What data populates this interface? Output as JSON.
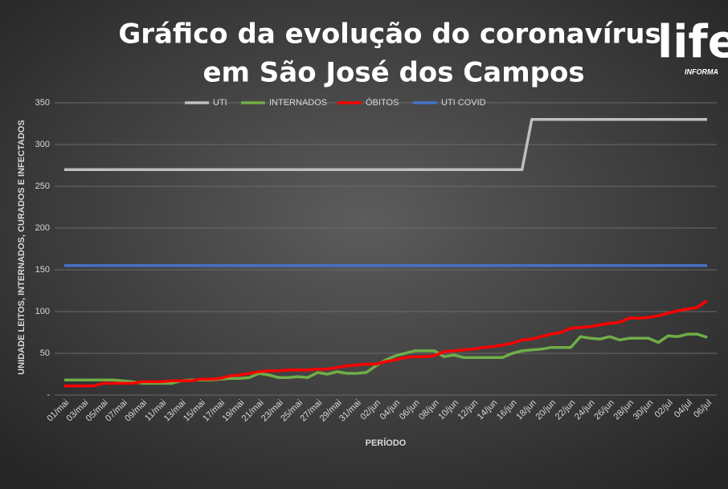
{
  "chart_data": {
    "type": "line",
    "title": [
      "Gráfico da evolução do coronavírus",
      "em São José dos Campos"
    ],
    "logo_text": "life",
    "logo_subtext": "INFORMA",
    "y_label": "UNIDADE LEITOS, INTERNADOS, CURADOS E INFECTADOS",
    "x_label": "PERÍODO",
    "categories": [
      "01/mai",
      null,
      "03/mai",
      null,
      "05/mai",
      null,
      "07/mai",
      null,
      "09/mai",
      null,
      "11/mai",
      null,
      "13/mai",
      null,
      "15/mai",
      null,
      "17/mai",
      null,
      "19/mai",
      null,
      "21/mai",
      null,
      "23/mai",
      null,
      "25/mai",
      null,
      "27/mai",
      null,
      "29/mai",
      null,
      "31/mai",
      null,
      "02/jun",
      null,
      "04/jun",
      null,
      "06/jun",
      null,
      "08/jun",
      null,
      "10/jun",
      null,
      "12/jun",
      null,
      "14/jun",
      null,
      "16/jun",
      null,
      "18/jun",
      null,
      "20/jun",
      null,
      "22/jun",
      null,
      "24/jun",
      null,
      "26/jun",
      null,
      "28/jun",
      null,
      "30/jun",
      null,
      "02/jul",
      null,
      "04/jul",
      null,
      "06/jul"
    ],
    "series": [
      {
        "name": "UTI",
        "color": "#bfbfbf",
        "values": [
          270,
          270,
          270,
          270,
          270,
          270,
          270,
          270,
          270,
          270,
          270,
          270,
          270,
          270,
          270,
          270,
          270,
          270,
          270,
          270,
          270,
          270,
          270,
          270,
          270,
          270,
          270,
          270,
          270,
          270,
          270,
          270,
          270,
          270,
          270,
          270,
          270,
          270,
          270,
          270,
          270,
          270,
          270,
          270,
          270,
          270,
          270,
          270,
          330,
          330,
          330,
          330,
          330,
          330,
          330,
          330,
          330,
          330,
          330,
          330,
          330,
          330,
          330,
          330,
          330,
          330,
          330
        ]
      },
      {
        "name": "INTERNADOS",
        "color": "#70ad47",
        "values": [
          18,
          18,
          18,
          18,
          18,
          18,
          17,
          16,
          14,
          14,
          14,
          14,
          17,
          18,
          18,
          18,
          19,
          20,
          20,
          21,
          26,
          24,
          21,
          21,
          22,
          21,
          27,
          25,
          28,
          26,
          26,
          27,
          35,
          42,
          47,
          50,
          53,
          53,
          53,
          46,
          48,
          45,
          45,
          45,
          45,
          45,
          50,
          53,
          54,
          55,
          57,
          57,
          57,
          70,
          68,
          67,
          70,
          66,
          68,
          68,
          68,
          63,
          71,
          70,
          73,
          73,
          69
        ]
      },
      {
        "name": "ÓBITOS",
        "color": "#ff0000",
        "values": [
          11,
          11,
          11,
          11,
          14,
          14,
          14,
          14,
          16,
          16,
          16,
          17,
          17,
          17,
          19,
          19,
          20,
          23,
          24,
          26,
          28,
          29,
          29,
          30,
          30,
          30,
          31,
          31,
          33,
          35,
          36,
          37,
          37,
          40,
          42,
          45,
          46,
          46,
          47,
          52,
          53,
          54,
          55,
          57,
          58,
          60,
          62,
          66,
          67,
          70,
          73,
          75,
          80,
          81,
          82,
          84,
          86,
          87,
          92,
          92,
          93,
          95,
          98,
          101,
          103,
          105,
          113
        ]
      },
      {
        "name": "UTI COVID",
        "color": "#4472c4",
        "values": [
          155,
          155,
          155,
          155,
          155,
          155,
          155,
          155,
          155,
          155,
          155,
          155,
          155,
          155,
          155,
          155,
          155,
          155,
          155,
          155,
          155,
          155,
          155,
          155,
          155,
          155,
          155,
          155,
          155,
          155,
          155,
          155,
          155,
          155,
          155,
          155,
          155,
          155,
          155,
          155,
          155,
          155,
          155,
          155,
          155,
          155,
          155,
          155,
          155,
          155,
          155,
          155,
          155,
          155,
          155,
          155,
          155,
          155,
          155,
          155,
          155,
          155,
          155,
          155,
          155,
          155,
          155
        ]
      }
    ],
    "ylim": [
      0,
      350
    ],
    "yticks": [
      {
        "value": 0,
        "label": "-"
      },
      50,
      100,
      150,
      200,
      250,
      300,
      350
    ],
    "grid": true,
    "legend": "top"
  }
}
